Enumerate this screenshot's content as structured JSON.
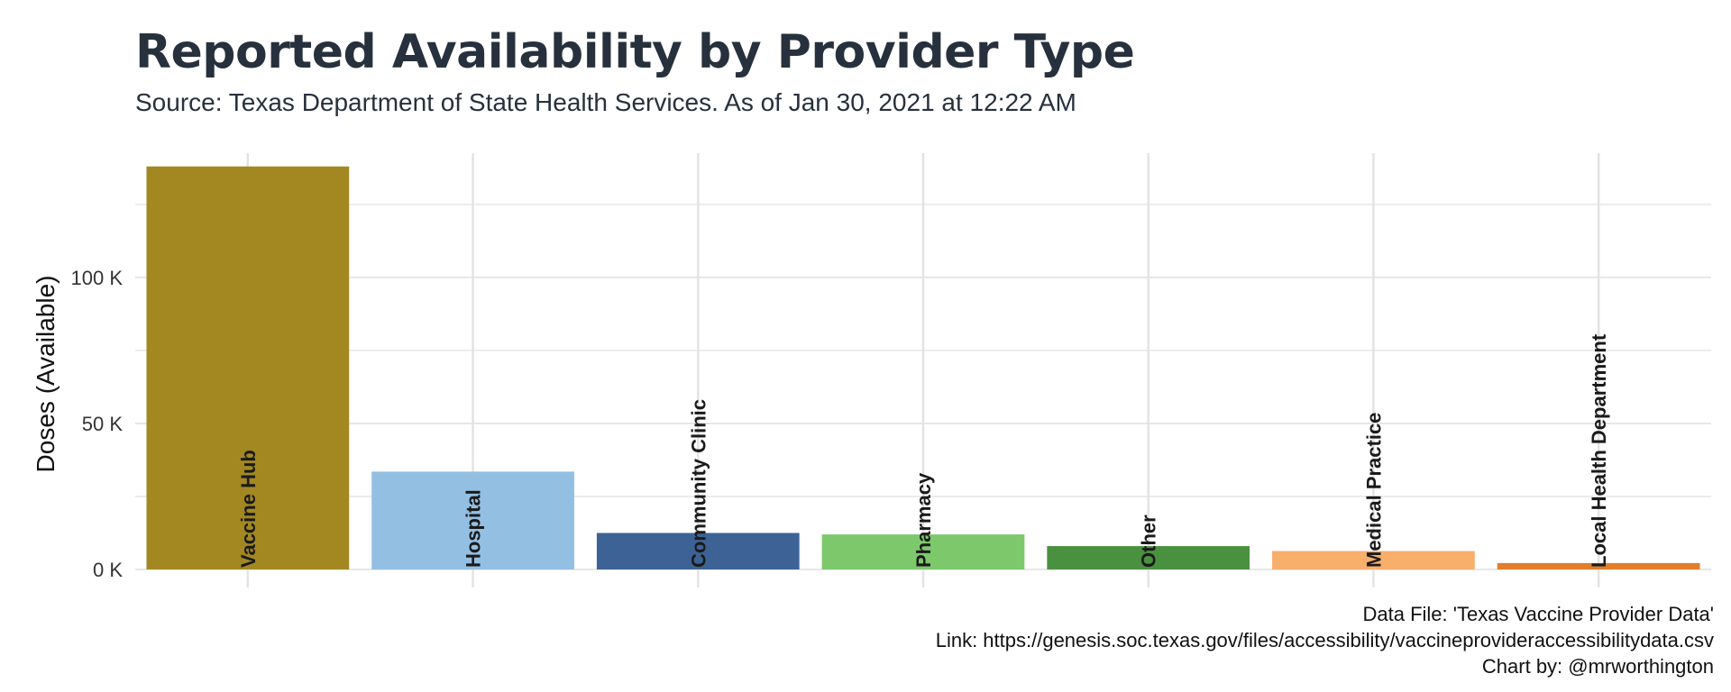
{
  "header": {
    "title": "Reported Availability by Provider Type",
    "subtitle": "Source: Texas Department of State Health Services. As of Jan 30, 2021 at 12:22 AM"
  },
  "caption": {
    "line1": "Data File: 'Texas Vaccine Provider Data'",
    "line2": "Link: https://genesis.soc.texas.gov/files/accessibility/vaccineprovideraccessibilitydata.csv",
    "line3": "Chart by: @mrworthington"
  },
  "chart_data": {
    "type": "bar",
    "title": "Reported Availability by Provider Type",
    "subtitle": "Source: Texas Department of State Health Services. As of Jan 30, 2021 at 12:22 AM",
    "xlabel": "",
    "ylabel": "Doses (Available)",
    "categories": [
      "Vaccine Hub",
      "Hospital",
      "Community Clinic",
      "Pharmacy",
      "Other",
      "Medical Practice",
      "Local Health Department"
    ],
    "values": [
      138000,
      33500,
      12500,
      12000,
      8000,
      6300,
      2200
    ],
    "colors": [
      "#a38821",
      "#93bfe2",
      "#3d6396",
      "#7ec86c",
      "#4a913f",
      "#f8af6c",
      "#e07f2e"
    ],
    "ylim": [
      0,
      141000
    ],
    "yticks": [
      0,
      50000,
      100000
    ],
    "ytick_labels": [
      "0 K",
      "50 K",
      "100 K"
    ],
    "grid": true,
    "legend": "none",
    "label_placement": "rotated-inside-bar-bottom"
  }
}
